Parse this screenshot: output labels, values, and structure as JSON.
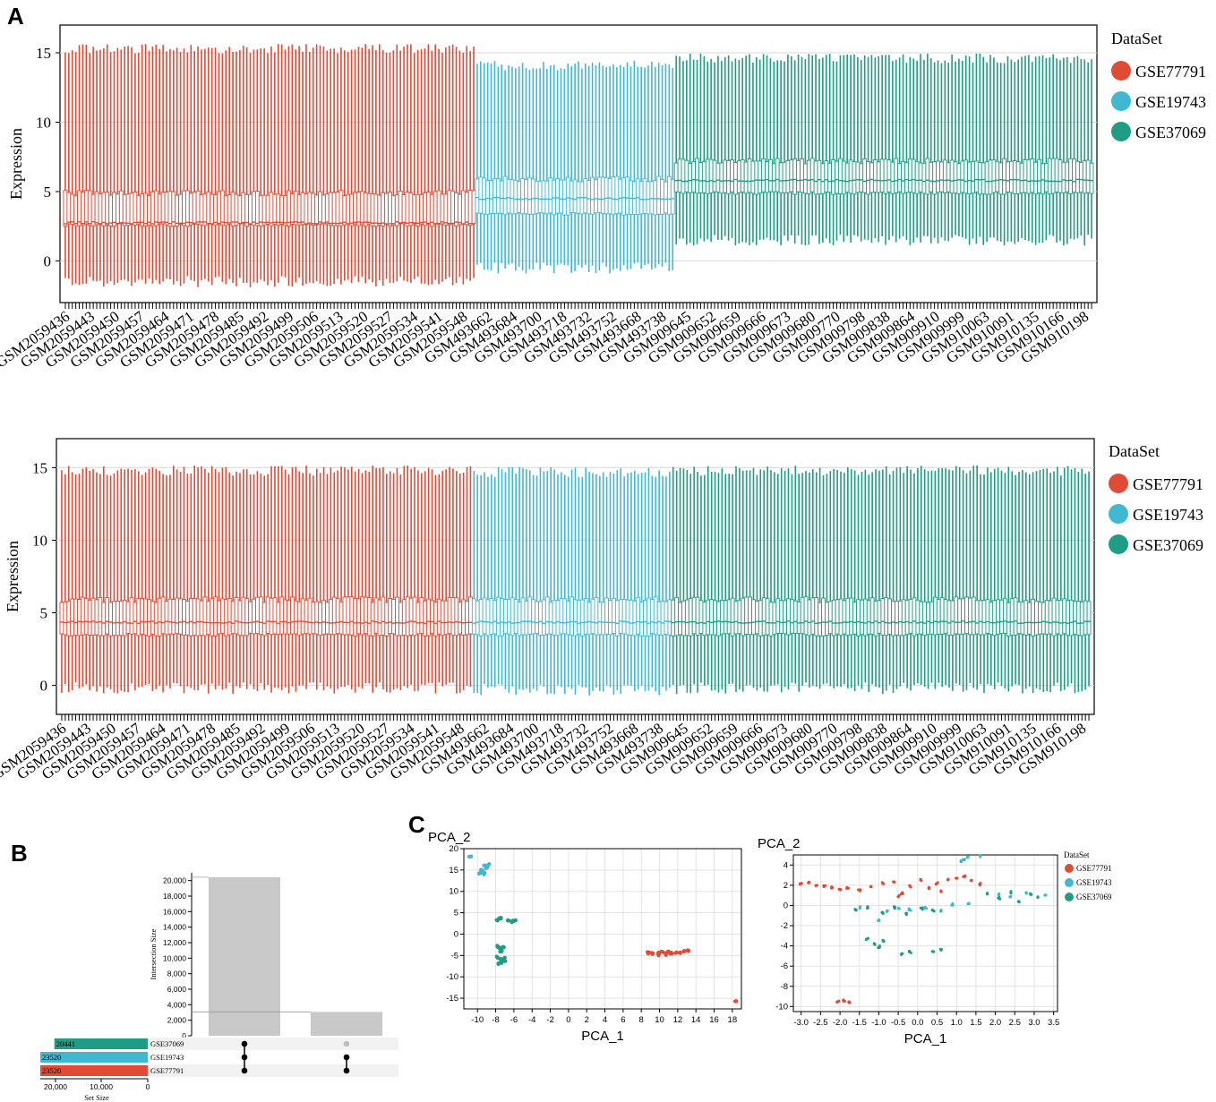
{
  "panels": {
    "a": "A",
    "b": "B",
    "c": "C"
  },
  "colors": {
    "GSE77791": "#E04B36",
    "GSE19743": "#40B8D2",
    "GSE37069": "#1E9C84",
    "grid": "#d9d9d9",
    "bar_gray": "#c8c8c8"
  },
  "chart_data": [
    {
      "id": "boxplot_before",
      "type": "box",
      "title": "",
      "ylabel": "Expression",
      "ylim": [
        -3,
        17
      ],
      "yticks": [
        0,
        5,
        10,
        15
      ],
      "legend_title": "DataSet",
      "legend": [
        "GSE77791",
        "GSE19743",
        "GSE37069"
      ],
      "x_tick_labels": [
        "GSM2059436",
        "GSM2059443",
        "GSM2059450",
        "GSM2059457",
        "GSM2059464",
        "GSM2059471",
        "GSM2059478",
        "GSM2059485",
        "GSM2059492",
        "GSM2059499",
        "GSM2059506",
        "GSM2059513",
        "GSM2059520",
        "GSM2059527",
        "GSM2059534",
        "GSM2059541",
        "GSM2059548",
        "GSM493662",
        "GSM493684",
        "GSM493700",
        "GSM493718",
        "GSM493732",
        "GSM493752",
        "GSM493668",
        "GSM493738",
        "GSM909645",
        "GSM909652",
        "GSM909659",
        "GSM909666",
        "GSM909673",
        "GSM909680",
        "GSM909770",
        "GSM909798",
        "GSM909838",
        "GSM909864",
        "GSM909910",
        "GSM909999",
        "GSM910063",
        "GSM910091",
        "GSM910135",
        "GSM910166",
        "GSM910198"
      ],
      "series": [
        {
          "name": "GSE77791",
          "n_samples": 118,
          "whisker_low": -1.5,
          "q1": 2.6,
          "median": 2.75,
          "q3": 4.9,
          "whisker_high": 15.3
        },
        {
          "name": "GSE19743",
          "n_samples": 57,
          "whisker_low": -0.5,
          "q1": 3.4,
          "median": 4.5,
          "q3": 5.9,
          "whisker_high": 14.1
        },
        {
          "name": "GSE37069",
          "n_samples": 120,
          "whisker_low": 1.5,
          "q1": 4.9,
          "median": 5.8,
          "q3": 7.2,
          "whisker_high": 14.6
        }
      ]
    },
    {
      "id": "boxplot_after",
      "type": "box",
      "title": "",
      "ylabel": "Expression",
      "ylim": [
        -2,
        17
      ],
      "yticks": [
        0,
        5,
        10,
        15
      ],
      "legend_title": "DataSet",
      "legend": [
        "GSE77791",
        "GSE19743",
        "GSE37069"
      ],
      "x_tick_labels": [
        "GSM2059436",
        "GSM2059443",
        "GSM2059450",
        "GSM2059457",
        "GSM2059464",
        "GSM2059471",
        "GSM2059478",
        "GSM2059485",
        "GSM2059492",
        "GSM2059499",
        "GSM2059506",
        "GSM2059513",
        "GSM2059520",
        "GSM2059527",
        "GSM2059534",
        "GSM2059541",
        "GSM2059548",
        "GSM493662",
        "GSM493684",
        "GSM493700",
        "GSM493718",
        "GSM493732",
        "GSM493752",
        "GSM493668",
        "GSM493738",
        "GSM909645",
        "GSM909652",
        "GSM909659",
        "GSM909666",
        "GSM909673",
        "GSM909680",
        "GSM909770",
        "GSM909798",
        "GSM909838",
        "GSM909864",
        "GSM909910",
        "GSM909999",
        "GSM910063",
        "GSM910091",
        "GSM910135",
        "GSM910166",
        "GSM910198"
      ],
      "series": [
        {
          "name": "GSE77791",
          "n_samples": 118,
          "whisker_low": -0.2,
          "q1": 3.5,
          "median": 4.35,
          "q3": 5.9,
          "whisker_high": 14.8
        },
        {
          "name": "GSE19743",
          "n_samples": 57,
          "whisker_low": -0.3,
          "q1": 3.5,
          "median": 4.35,
          "q3": 5.9,
          "whisker_high": 14.7
        },
        {
          "name": "GSE37069",
          "n_samples": 120,
          "whisker_low": -0.2,
          "q1": 3.5,
          "median": 4.35,
          "q3": 5.9,
          "whisker_high": 14.8
        }
      ]
    },
    {
      "id": "upset",
      "type": "bar",
      "ylabel": "Intersection Size",
      "ylim": [
        0,
        21000
      ],
      "yticks": [
        0,
        2000,
        4000,
        6000,
        8000,
        10000,
        12000,
        14000,
        16000,
        18000,
        20000
      ],
      "ytick_labels": [
        "0",
        "2,000",
        "4,000",
        "6,000",
        "8,000",
        "10,000",
        "12,000",
        "14,000",
        "16,000",
        "18,000",
        "20,000"
      ],
      "intersections": [
        {
          "sets": [
            "GSE37069",
            "GSE19743",
            "GSE77791"
          ],
          "value": 20441
        },
        {
          "sets": [
            "GSE19743",
            "GSE77791"
          ],
          "value": 3079
        }
      ],
      "sets": [
        {
          "name": "GSE37069",
          "size": 20441,
          "size_label": "20441"
        },
        {
          "name": "GSE19743",
          "size": 23520,
          "size_label": "23520"
        },
        {
          "name": "GSE77791",
          "size": 23520,
          "size_label": "23520"
        }
      ],
      "set_size_label": "Set Size",
      "set_size_ticks": [
        "20,000",
        "10,000",
        "0"
      ],
      "set_size_max": 23520
    },
    {
      "id": "pca_before",
      "type": "scatter",
      "xlabel": "PCA_1",
      "ylabel": "PCA_2",
      "xlim": [
        -11.5,
        19
      ],
      "ylim": [
        -17.5,
        20
      ],
      "xticks": [
        -10,
        -8,
        -6,
        -4,
        -2,
        0,
        2,
        4,
        6,
        8,
        10,
        12,
        14,
        16,
        18
      ],
      "yticks": [
        -15,
        -10,
        -5,
        0,
        5,
        10,
        15,
        20
      ],
      "clusters": [
        {
          "name": "GSE19743",
          "points": [
            [
              -10.8,
              18.3
            ],
            [
              -9.8,
              14.3
            ],
            [
              -9.6,
              15.0
            ],
            [
              -9.4,
              14.6
            ],
            [
              -9.2,
              16.0
            ],
            [
              -9.0,
              15.6
            ],
            [
              -8.8,
              16.2
            ],
            [
              -9.3,
              14.1
            ]
          ]
        },
        {
          "name": "GSE37069",
          "points": [
            [
              -7.8,
              3.4
            ],
            [
              -7.5,
              3.7
            ],
            [
              -6.6,
              3.2
            ],
            [
              -6.2,
              3.0
            ],
            [
              -5.9,
              3.1
            ],
            [
              -7.8,
              -2.8
            ],
            [
              -7.6,
              -3.3
            ],
            [
              -7.4,
              -3.9
            ],
            [
              -7.2,
              -3.0
            ],
            [
              -7.8,
              -5.4
            ],
            [
              -7.5,
              -6.0
            ],
            [
              -7.3,
              -6.6
            ],
            [
              -7.1,
              -5.6
            ],
            [
              -7.6,
              -7.0
            ],
            [
              -7.0,
              -6.2
            ]
          ]
        },
        {
          "name": "GSE77791",
          "points": [
            [
              8.8,
              -4.4
            ],
            [
              9.3,
              -4.6
            ],
            [
              9.8,
              -4.5
            ],
            [
              10.3,
              -4.3
            ],
            [
              10.8,
              -4.7
            ],
            [
              11.3,
              -4.4
            ],
            [
              11.8,
              -4.2
            ],
            [
              12.2,
              -4.5
            ],
            [
              12.7,
              -4.0
            ],
            [
              13.1,
              -3.9
            ],
            [
              11.0,
              -4.1
            ],
            [
              10.0,
              -4.8
            ],
            [
              18.4,
              -15.7
            ]
          ]
        }
      ]
    },
    {
      "id": "pca_after",
      "type": "scatter",
      "xlabel": "PCA_1",
      "ylabel": "PCA_2",
      "xlim": [
        -3.2,
        3.6
      ],
      "ylim": [
        -10.5,
        5
      ],
      "xticks": [
        -3.0,
        -2.5,
        -2.0,
        -1.5,
        -1.0,
        -0.5,
        0.0,
        0.5,
        1.0,
        1.5,
        2.0,
        2.5,
        3.0,
        3.5
      ],
      "xtick_labels": [
        "-3.0",
        "-2.5",
        "-2.0",
        "-1.5",
        "-1.0",
        "-0.5",
        "0.0",
        "0.5",
        "1.0",
        "1.5",
        "2.0",
        "2.5",
        "3.0",
        "3.5"
      ],
      "yticks": [
        -10,
        -8,
        -6,
        -4,
        -2,
        0,
        2,
        4
      ],
      "legend_title": "DataSet",
      "legend": [
        "GSE77791",
        "GSE19743",
        "GSE37069"
      ],
      "clusters": [
        {
          "name": "GSE77791",
          "points": [
            [
              -3.0,
              2.1
            ],
            [
              -2.8,
              2.3
            ],
            [
              -2.6,
              2.0
            ],
            [
              -2.4,
              1.9
            ],
            [
              -2.2,
              1.8
            ],
            [
              -2.0,
              1.6
            ],
            [
              -1.8,
              1.7
            ],
            [
              -1.5,
              1.5
            ],
            [
              -1.2,
              1.8
            ],
            [
              -0.9,
              2.2
            ],
            [
              -0.6,
              2.4
            ],
            [
              -0.4,
              1.2
            ],
            [
              -0.2,
              1.9
            ],
            [
              0.1,
              2.5
            ],
            [
              0.3,
              1.7
            ],
            [
              0.5,
              2.2
            ],
            [
              0.8,
              2.6
            ],
            [
              1.0,
              2.7
            ],
            [
              1.2,
              2.9
            ],
            [
              1.4,
              2.4
            ],
            [
              1.6,
              2.1
            ],
            [
              0.6,
              1.4
            ],
            [
              -0.5,
              0.9
            ],
            [
              -2.05,
              -9.5
            ],
            [
              -1.9,
              -9.4
            ],
            [
              -1.75,
              -9.6
            ]
          ]
        },
        {
          "name": "GSE19743",
          "points": [
            [
              1.1,
              4.4
            ],
            [
              1.3,
              4.8
            ],
            [
              1.6,
              4.9
            ],
            [
              1.2,
              4.5
            ],
            [
              -1.0,
              -1.5
            ],
            [
              -0.8,
              -0.6
            ],
            [
              -0.5,
              -0.3
            ],
            [
              -0.2,
              -0.4
            ],
            [
              0.2,
              -0.2
            ],
            [
              0.6,
              -0.5
            ],
            [
              0.9,
              0.1
            ],
            [
              1.3,
              0.2
            ],
            [
              2.1,
              1.1
            ],
            [
              2.4,
              0.9
            ],
            [
              2.8,
              1.2
            ],
            [
              3.3,
              1.0
            ],
            [
              -1.5,
              -0.2
            ]
          ]
        },
        {
          "name": "GSE37069",
          "points": [
            [
              -1.6,
              -0.4
            ],
            [
              -1.3,
              -0.2
            ],
            [
              -0.9,
              -0.7
            ],
            [
              -0.6,
              -0.2
            ],
            [
              -0.3,
              -0.8
            ],
            [
              0.1,
              -0.3
            ],
            [
              0.4,
              -0.5
            ],
            [
              1.8,
              1.2
            ],
            [
              2.1,
              0.7
            ],
            [
              2.4,
              1.3
            ],
            [
              2.6,
              0.4
            ],
            [
              2.9,
              1.1
            ],
            [
              3.1,
              0.8
            ],
            [
              -1.3,
              -3.3
            ],
            [
              -1.1,
              -3.8
            ],
            [
              -0.9,
              -3.5
            ],
            [
              -1.0,
              -4.1
            ],
            [
              -0.4,
              -4.8
            ],
            [
              -0.2,
              -4.6
            ],
            [
              0.4,
              -4.5
            ],
            [
              0.6,
              -4.4
            ]
          ]
        }
      ]
    }
  ]
}
